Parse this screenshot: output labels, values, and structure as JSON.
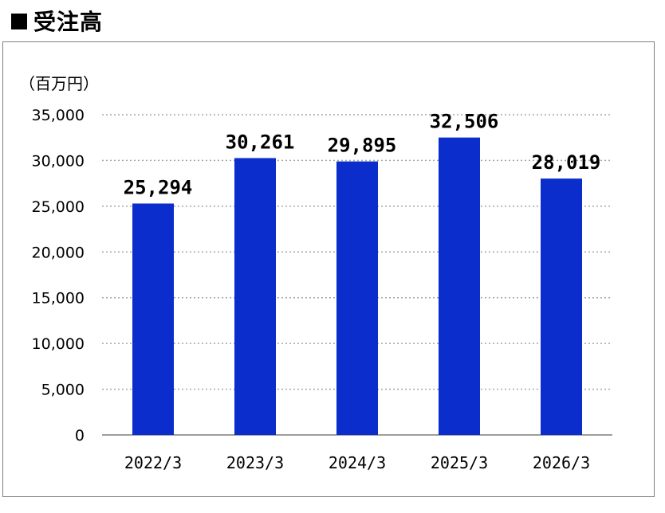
{
  "title": "受注高",
  "chart_data": {
    "type": "bar",
    "title": "受注高",
    "unit_label": "（百万円）",
    "categories": [
      "2022/3",
      "2023/3",
      "2024/3",
      "2025/3",
      "2026/3"
    ],
    "values": [
      25294,
      30261,
      29895,
      32506,
      28019
    ],
    "data_labels": [
      "25,294",
      "30,261",
      "29,895",
      "32,506",
      "28,019"
    ],
    "y_ticks": [
      "0",
      "5,000",
      "10,000",
      "15,000",
      "20,000",
      "25,000",
      "30,000",
      "35,000"
    ],
    "ylim": [
      0,
      35000
    ],
    "grid": true,
    "bar_color": "#0a2dcc",
    "grid_color": "#a6a6a6",
    "legend": "none"
  }
}
